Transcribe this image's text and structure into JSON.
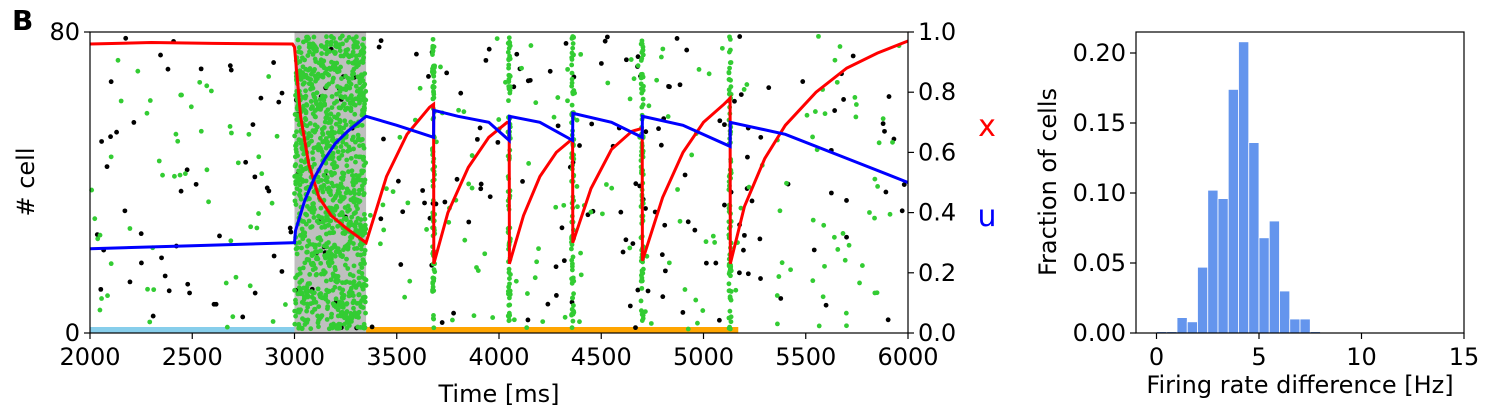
{
  "panel_label": "B",
  "chart_data": [
    {
      "type": "scatter",
      "title": "",
      "xlabel": "Time [ms]",
      "ylabel": "# cell",
      "xlim": [
        2000,
        6000
      ],
      "ylim": [
        0,
        80
      ],
      "x_ticks": [
        "2000",
        "2500",
        "3000",
        "3500",
        "4000",
        "4500",
        "5000",
        "5500",
        "6000"
      ],
      "y_ticks": [
        "0",
        "80"
      ],
      "right_axis": {
        "ylim": [
          0,
          1.0
        ],
        "ticks": [
          "0.0",
          "0.2",
          "0.4",
          "0.6",
          "0.8",
          "1.0"
        ]
      },
      "legend_labels": {
        "x": "x",
        "u": "u"
      },
      "colors": {
        "x": "#ff0000",
        "u": "#0000ff",
        "selective_spikes": "#33cc33",
        "nonselective_spikes": "#000000",
        "cue_shading": "#bfbfbf",
        "baseline_bar": "#87ceeb",
        "delay_bar": "#ffa500"
      },
      "cue_interval": [
        3000,
        3350
      ],
      "baseline_bar": [
        2000,
        3000
      ],
      "delay_bar": [
        3350,
        5170
      ],
      "reactivation_times": [
        3680,
        4050,
        4360,
        4700,
        5130
      ],
      "series": [
        {
          "name": "x",
          "axis": "right",
          "points": [
            [
              2000,
              0.96
            ],
            [
              2300,
              0.965
            ],
            [
              2600,
              0.962
            ],
            [
              2990,
              0.96
            ],
            [
              3000,
              0.95
            ],
            [
              3030,
              0.72
            ],
            [
              3070,
              0.56
            ],
            [
              3120,
              0.45
            ],
            [
              3180,
              0.39
            ],
            [
              3250,
              0.35
            ],
            [
              3350,
              0.3
            ],
            [
              3450,
              0.52
            ],
            [
              3550,
              0.66
            ],
            [
              3660,
              0.75
            ],
            [
              3680,
              0.76
            ],
            [
              3681,
              0.23
            ],
            [
              3750,
              0.4
            ],
            [
              3850,
              0.55
            ],
            [
              3950,
              0.65
            ],
            [
              4040,
              0.7
            ],
            [
              4050,
              0.7
            ],
            [
              4051,
              0.23
            ],
            [
              4120,
              0.39
            ],
            [
              4200,
              0.52
            ],
            [
              4280,
              0.6
            ],
            [
              4350,
              0.64
            ],
            [
              4360,
              0.64
            ],
            [
              4361,
              0.3
            ],
            [
              4450,
              0.48
            ],
            [
              4550,
              0.61
            ],
            [
              4650,
              0.67
            ],
            [
              4700,
              0.68
            ],
            [
              4701,
              0.24
            ],
            [
              4800,
              0.45
            ],
            [
              4900,
              0.6
            ],
            [
              5000,
              0.7
            ],
            [
              5100,
              0.76
            ],
            [
              5130,
              0.78
            ],
            [
              5131,
              0.23
            ],
            [
              5200,
              0.42
            ],
            [
              5300,
              0.58
            ],
            [
              5400,
              0.69
            ],
            [
              5550,
              0.8
            ],
            [
              5700,
              0.88
            ],
            [
              5850,
              0.93
            ],
            [
              6000,
              0.97
            ]
          ]
        },
        {
          "name": "u",
          "axis": "right",
          "points": [
            [
              2000,
              0.28
            ],
            [
              2500,
              0.29
            ],
            [
              2990,
              0.3
            ],
            [
              3000,
              0.3
            ],
            [
              3005,
              0.34
            ],
            [
              3050,
              0.44
            ],
            [
              3100,
              0.52
            ],
            [
              3150,
              0.58
            ],
            [
              3200,
              0.63
            ],
            [
              3260,
              0.67
            ],
            [
              3350,
              0.72
            ],
            [
              3500,
              0.69
            ],
            [
              3680,
              0.65
            ],
            [
              3681,
              0.74
            ],
            [
              3800,
              0.72
            ],
            [
              3950,
              0.7
            ],
            [
              4050,
              0.64
            ],
            [
              4051,
              0.72
            ],
            [
              4200,
              0.7
            ],
            [
              4360,
              0.64
            ],
            [
              4361,
              0.73
            ],
            [
              4550,
              0.7
            ],
            [
              4700,
              0.65
            ],
            [
              4701,
              0.72
            ],
            [
              4900,
              0.69
            ],
            [
              5130,
              0.62
            ],
            [
              5131,
              0.7
            ],
            [
              5400,
              0.66
            ],
            [
              5700,
              0.58
            ],
            [
              6000,
              0.5
            ]
          ]
        }
      ]
    },
    {
      "type": "bar",
      "title": "",
      "xlabel": "Firing rate difference [Hz]",
      "ylabel": "Fraction of cells",
      "xlim": [
        -1,
        15
      ],
      "ylim": [
        0,
        0.215
      ],
      "x_ticks": [
        "0",
        "5",
        "10",
        "15"
      ],
      "y_ticks": [
        "0.00",
        "0.05",
        "0.10",
        "0.15",
        "0.20"
      ],
      "bar_color": "#6495ed",
      "bin_width": 0.5,
      "bin_starts": [
        0,
        0.5,
        1.0,
        1.5,
        2.0,
        2.5,
        3.0,
        3.5,
        4.0,
        4.5,
        5.0,
        5.5,
        6.0,
        6.5,
        7.0,
        7.5
      ],
      "values": [
        0.001,
        0.001,
        0.011,
        0.008,
        0.047,
        0.102,
        0.096,
        0.174,
        0.208,
        0.136,
        0.068,
        0.08,
        0.03,
        0.01,
        0.01,
        0.001
      ]
    }
  ]
}
